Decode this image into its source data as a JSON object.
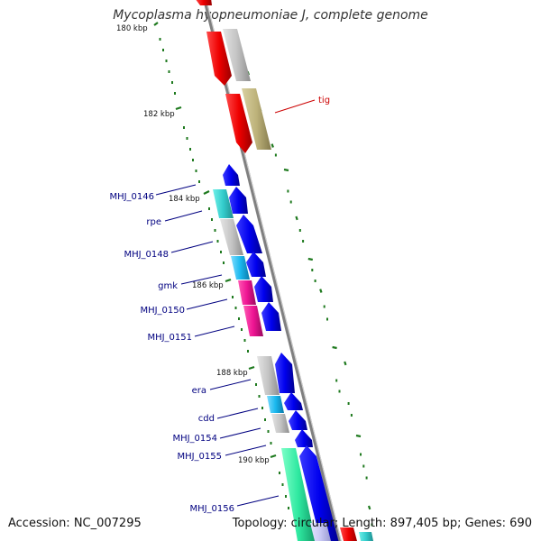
{
  "title": "Mycoplasma hyopneumoniae J, complete genome",
  "footer": {
    "accession": "Accession: NC_007295",
    "summary": "Topology: circular; Length: 897,405 bp; Genes: 690"
  },
  "tick_labels": [
    "180 kbp",
    "182 kbp",
    "184 kbp",
    "186 kbp",
    "188 kbp",
    "190 kbp"
  ],
  "gene_labels": [
    "tig",
    "MHJ_0146",
    "rpe",
    "MHJ_0148",
    "gmk",
    "MHJ_0150",
    "MHJ_0151",
    "era",
    "cdd",
    "MHJ_0154",
    "MHJ_0155",
    "MHJ_0156"
  ],
  "colors": {
    "backbone": "#808080",
    "tick": "#1f7a1f",
    "gene_label": "#000080",
    "tig_label": "#cc0000",
    "cds": "#0000ee",
    "rrna": "#ee0000"
  }
}
